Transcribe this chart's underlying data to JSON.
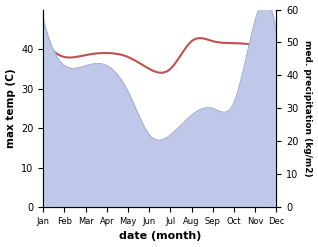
{
  "months": [
    "Jan",
    "Feb",
    "Mar",
    "Apr",
    "May",
    "Jun",
    "Jul",
    "Aug",
    "Sep",
    "Oct",
    "Nov",
    "Dec"
  ],
  "max_temp": [
    43,
    38,
    38.5,
    39,
    38,
    35,
    35,
    42,
    42,
    41.5,
    41,
    39
  ],
  "precipitation": [
    57,
    43,
    43,
    43,
    35,
    22,
    22,
    28,
    30,
    32,
    57,
    52
  ],
  "temp_color": "#c0504d",
  "precip_fill_color": "#bfc8e8",
  "precip_line_color": "#9aa4d0",
  "background_color": "#ffffff",
  "ylabel_left": "max temp (C)",
  "ylabel_right": "med. precipitation (kg/m2)",
  "xlabel": "date (month)",
  "ylim_left": [
    0,
    50
  ],
  "ylim_right": [
    0,
    60
  ],
  "yticks_left": [
    0,
    10,
    20,
    30,
    40
  ],
  "yticks_right": [
    0,
    10,
    20,
    30,
    40,
    50,
    60
  ]
}
